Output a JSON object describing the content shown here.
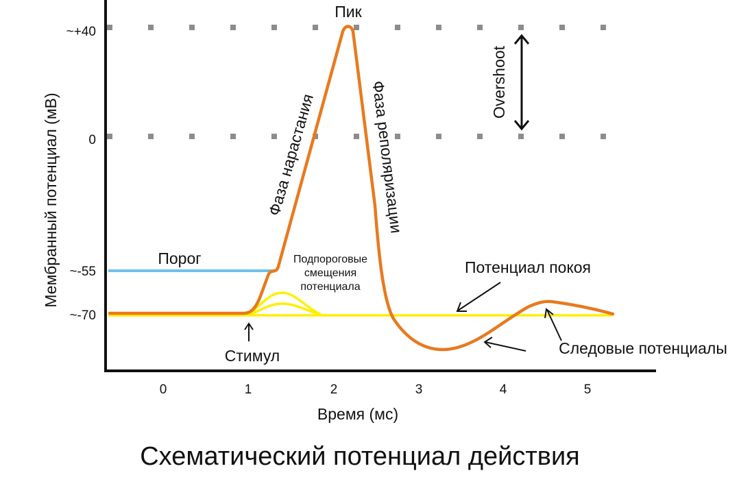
{
  "title": "Схематический потенциал действия",
  "y_axis": {
    "label": "Мембранный потенциал (мВ)",
    "ticks": [
      "~+40",
      "0",
      "~-55",
      "~-70"
    ]
  },
  "x_axis": {
    "label": "Время (мс)",
    "ticks": [
      "0",
      "1",
      "2",
      "3",
      "4",
      "5"
    ]
  },
  "annotations": {
    "peak": "Пик",
    "rising_phase": "Фаза нарастания",
    "repolarization_phase": "Фаза реполяризации",
    "overshoot": "Overshoot",
    "threshold": "Порог",
    "subthreshold_1": "Подпороговые",
    "subthreshold_2": "смещения",
    "subthreshold_3": "потенциала",
    "resting_potential": "Потенциал покоя",
    "trace_potentials": "Следовые потенциалы",
    "stimulus": "Стимул"
  },
  "colors": {
    "action_potential": "#e87a1e",
    "threshold": "#6ec1ea",
    "resting_and_subthreshold": "#ffef00",
    "gridline_dots": "#8c8c8c",
    "axes": "#111111"
  }
}
